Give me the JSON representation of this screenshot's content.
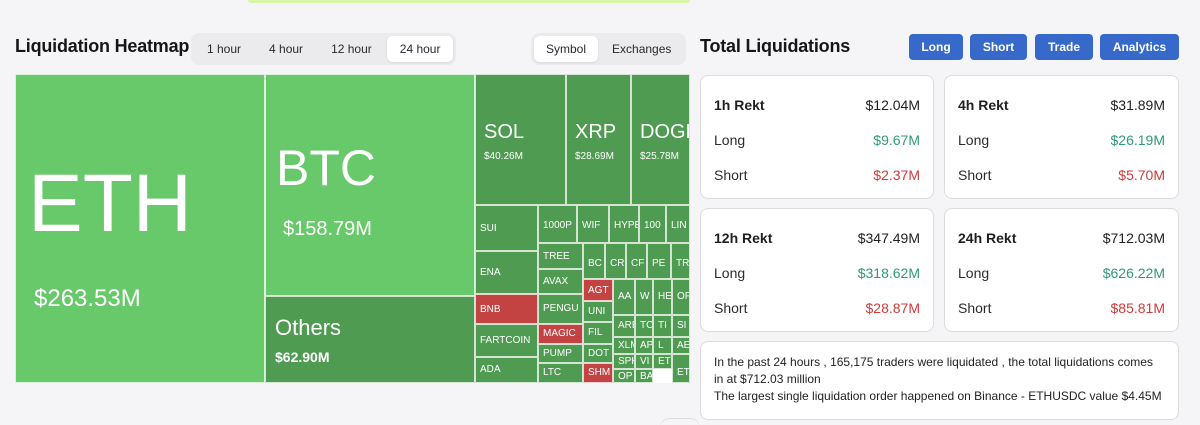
{
  "heatmap": {
    "title": "Liquidation Heatmap",
    "time_options": [
      "1 hour",
      "4 hour",
      "12 hour",
      "24 hour"
    ],
    "active_time": "24 hour",
    "mode_options": [
      "Symbol",
      "Exchanges"
    ],
    "active_mode": "Symbol",
    "tiles": {
      "eth": {
        "symbol": "ETH",
        "value": "$263.53M"
      },
      "btc": {
        "symbol": "BTC",
        "value": "$158.79M"
      },
      "others": {
        "symbol": "Others",
        "value": "$62.90M"
      },
      "sol": {
        "symbol": "SOL",
        "value": "$40.26M"
      },
      "xrp": {
        "symbol": "XRP",
        "value": "$28.69M"
      },
      "doge": {
        "symbol": "DOGE",
        "value": "$25.78M"
      },
      "small": [
        "SUI",
        "1000P",
        "WIF",
        "HYPE",
        "100",
        "LIN",
        "ENA",
        "TREE",
        "BC",
        "CR",
        "CF",
        "PE",
        "TR",
        "AVAX",
        "BNB",
        "AGT",
        "AA",
        "W",
        "HE",
        "OP",
        "PENGU",
        "UNI",
        "ARE",
        "TC",
        "TI",
        "SI",
        "MAGIC",
        "FIL",
        "XLM",
        "AP",
        "L",
        "AE",
        "FARTCOIN",
        "PUMP",
        "DOT",
        "SPK",
        "VI",
        "ET",
        "ADA",
        "LTC",
        "SHM",
        "OP",
        "BA",
        "ET"
      ]
    }
  },
  "totals": {
    "title": "Total Liquidations",
    "buttons": [
      "Long",
      "Short",
      "Trade",
      "Analytics"
    ],
    "button_color": "#3669c9",
    "long_label": "Long",
    "short_label": "Short",
    "cards": {
      "h1": {
        "label": "1h Rekt",
        "total": "$12.04M",
        "long": "$9.67M",
        "short": "$2.37M"
      },
      "h4": {
        "label": "4h Rekt",
        "total": "$31.89M",
        "long": "$26.19M",
        "short": "$5.70M"
      },
      "h12": {
        "label": "12h Rekt",
        "total": "$347.49M",
        "long": "$318.62M",
        "short": "$28.87M"
      },
      "h24": {
        "label": "24h Rekt",
        "total": "$712.03M",
        "long": "$626.22M",
        "short": "$85.81M"
      }
    },
    "summary_line1": "In the past 24 hours , 165,175 traders were liquidated , the total liquidations comes in at $712.03 million",
    "summary_line2": "The largest single liquidation order happened on Binance - ETHUSDC value $4.45M"
  },
  "colors": {
    "positive": "#2f9a7a",
    "negative": "#d13a3a",
    "green_tile": "#68c96a",
    "dark_green_tile": "#4f9b51",
    "red_tile": "#c34343"
  }
}
